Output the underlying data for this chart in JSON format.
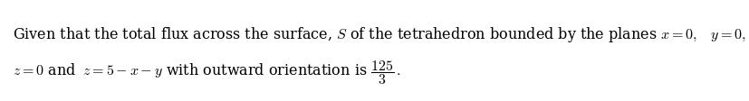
{
  "line1": "Given that the total flux across the surface, $S$ of the tetrahedron bounded by the planes $x=0,\\;\\;$ $y=0,$",
  "line2": "$z=0$ and $\\;z=5-x-y$ with outward orientation is $\\dfrac{125}{3}\\,.$",
  "background_color": "#ffffff",
  "text_color": "#000000",
  "fontsize": 11.5,
  "fig_width": 8.27,
  "fig_height": 1.13,
  "dpi": 100
}
